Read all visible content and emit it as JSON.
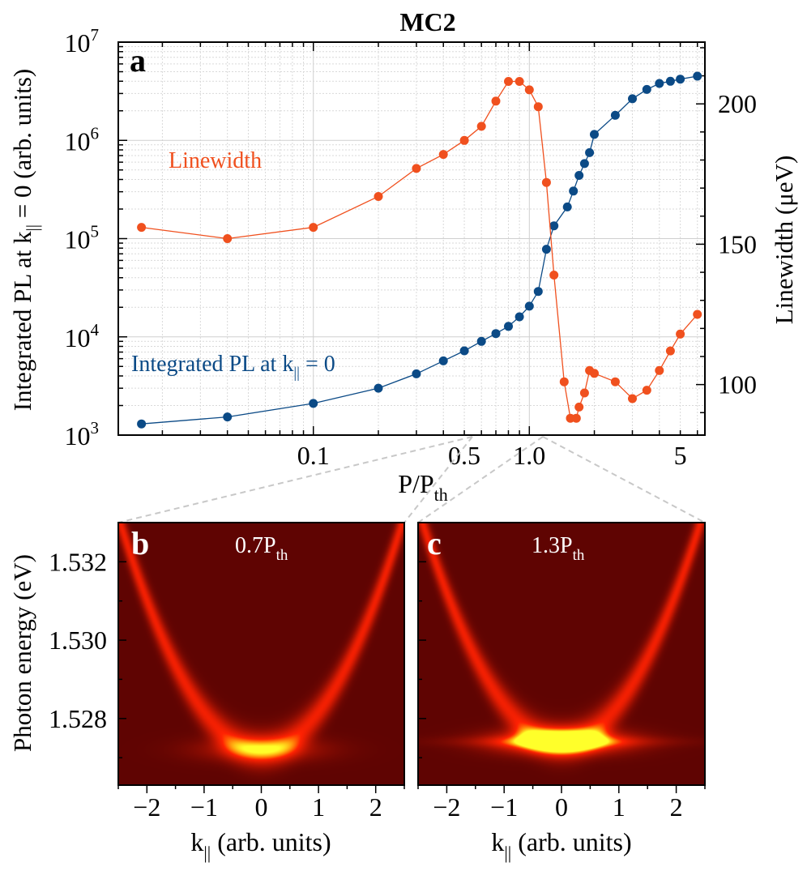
{
  "chart_data": [
    {
      "panel": "a",
      "type": "scatter",
      "title": "MC2",
      "xlabel": {
        "main": "P/P",
        "sub": "th"
      },
      "ylabel_left": {
        "pre": "Integrated PL at k",
        "sub": "||",
        "post": " = 0 (arb. units)"
      },
      "ylabel_right": "Linewidth (μeV)",
      "x_scale": "log",
      "xlim": [
        0.0125,
        6.5
      ],
      "x_ticks": [
        {
          "value": 0.1,
          "label": "0.1"
        },
        {
          "value": 0.5,
          "label": "0.5"
        },
        {
          "value": 1.0,
          "label": "1.0"
        },
        {
          "value": 5,
          "label": "5"
        }
      ],
      "y_scale_left": "log",
      "ylim_left": [
        1000,
        10000000
      ],
      "y_ticks_left": [
        {
          "value": 1000,
          "base": "10",
          "exp": "3"
        },
        {
          "value": 10000,
          "base": "10",
          "exp": "4"
        },
        {
          "value": 100000,
          "base": "10",
          "exp": "5"
        },
        {
          "value": 1000000,
          "base": "10",
          "exp": "6"
        },
        {
          "value": 10000000,
          "base": "10",
          "exp": "7"
        }
      ],
      "ylim_right": [
        82,
        222
      ],
      "y_ticks_right": [
        {
          "value": 100,
          "label": "100"
        },
        {
          "value": 150,
          "label": "150"
        },
        {
          "value": 200,
          "label": "200"
        }
      ],
      "grid": true,
      "series": [
        {
          "name": "Integrated PL at k|| = 0",
          "label": {
            "pre": "Integrated PL at k",
            "sub": "||",
            "post": " = 0"
          },
          "axis": "left",
          "color": "#0b4a86",
          "x": [
            0.016,
            0.04,
            0.1,
            0.2,
            0.3,
            0.4,
            0.5,
            0.6,
            0.7,
            0.8,
            0.9,
            1.0,
            1.1,
            1.2,
            1.3,
            1.5,
            1.6,
            1.7,
            1.8,
            1.9,
            2.0,
            2.5,
            3.0,
            3.5,
            4.0,
            4.5,
            5.0,
            6.0
          ],
          "values": [
            1300,
            1530,
            2100,
            3000,
            4200,
            5700,
            7200,
            9000,
            10800,
            12800,
            16000,
            20500,
            29000,
            78000,
            135000,
            210000,
            305000,
            440000,
            580000,
            750000,
            1150000,
            1800000,
            2650000,
            3300000,
            3800000,
            4000000,
            4200000,
            4500000
          ]
        },
        {
          "name": "Linewidth",
          "label": "Linewidth",
          "axis": "right",
          "color": "#f0501e",
          "x": [
            0.016,
            0.04,
            0.1,
            0.2,
            0.3,
            0.4,
            0.5,
            0.6,
            0.7,
            0.8,
            0.9,
            1.0,
            1.1,
            1.2,
            1.3,
            1.45,
            1.55,
            1.65,
            1.7,
            1.8,
            1.9,
            2.0,
            2.5,
            3.0,
            3.5,
            4.0,
            4.5,
            5.0,
            6.0
          ],
          "values": [
            156,
            152,
            156,
            167,
            177,
            182,
            187,
            192,
            201,
            208,
            208,
            205,
            199,
            172,
            139,
            101,
            88,
            88,
            92,
            97,
            105,
            104,
            101,
            95,
            98,
            105,
            112,
            118,
            125
          ]
        }
      ]
    },
    {
      "panel": "b",
      "type": "heatmap",
      "annotation": {
        "main": "0.7P",
        "sub": "th"
      },
      "xlabel": {
        "main": "k",
        "sub": "||",
        "post": " (arb. units)"
      },
      "ylabel": "Photon energy (eV)",
      "xlim": [
        -2.5,
        2.5
      ],
      "x_ticks": [
        {
          "value": -2,
          "label": "−2"
        },
        {
          "value": -1,
          "label": "−1"
        },
        {
          "value": 0,
          "label": "0"
        },
        {
          "value": 1,
          "label": "1"
        },
        {
          "value": 2,
          "label": "2"
        }
      ],
      "ylim": [
        1.5263,
        1.533
      ],
      "y_ticks": [
        {
          "value": 1.528,
          "label": "1.528"
        },
        {
          "value": 1.53,
          "label": "1.530"
        },
        {
          "value": 1.532,
          "label": "1.532"
        }
      ],
      "dispersion": {
        "e0": 1.5272,
        "curvature": 0.00095
      },
      "condensate_peak": 0.45
    },
    {
      "panel": "c",
      "type": "heatmap",
      "annotation": {
        "main": "1.3P",
        "sub": "th"
      },
      "xlabel": {
        "main": "k",
        "sub": "||",
        "post": " (arb. units)"
      },
      "xlim": [
        -2.5,
        2.5
      ],
      "x_ticks": [
        {
          "value": -2,
          "label": "−2"
        },
        {
          "value": -1,
          "label": "−1"
        },
        {
          "value": 0,
          "label": "0"
        },
        {
          "value": 1,
          "label": "1"
        },
        {
          "value": 2,
          "label": "2"
        }
      ],
      "ylim": [
        1.5263,
        1.533
      ],
      "dispersion": {
        "e0": 1.5274,
        "curvature": 0.00095
      },
      "condensate_peak": 1.0
    }
  ]
}
